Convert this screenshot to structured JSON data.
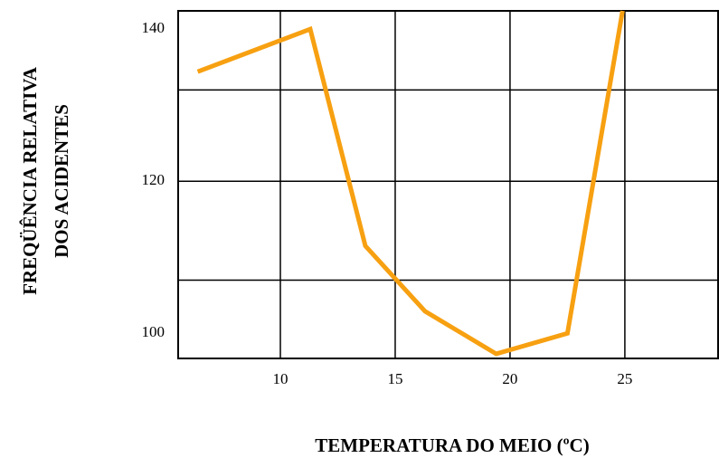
{
  "chart_data": {
    "type": "line",
    "xlabel": "TEMPERATURA DO MEIO (ºC)",
    "ylabel": [
      "FREQÜÊNCIA RELATIVA",
      "DOS ACIDENTES"
    ],
    "x": [
      6.4,
      11.3,
      13.7,
      16.3,
      19.4,
      22.5,
      24.9
    ],
    "series": [
      {
        "name": "Frequência",
        "color": "#f7a011",
        "values": [
          134.4,
          140,
          111.5,
          102.9,
          97.3,
          100,
          142.4
        ]
      }
    ],
    "xlim": [
      5.55,
      29.06
    ],
    "xticks": [
      10,
      15,
      20,
      25
    ],
    "ylim": [
      96.7,
      142.4
    ],
    "yticks": [
      100,
      120,
      140
    ],
    "ygrid": [
      107,
      120,
      132
    ],
    "grid": true
  }
}
